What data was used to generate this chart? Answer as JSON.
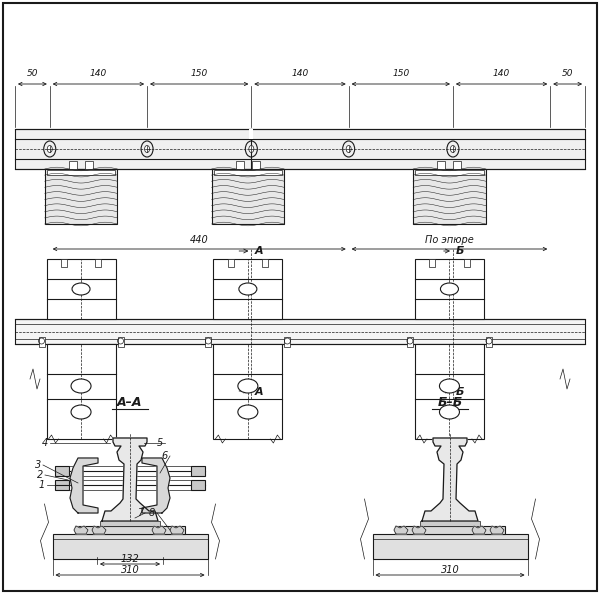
{
  "bg_color": "#ffffff",
  "line_color": "#1a1a1a",
  "dim_top": [
    "50",
    "140",
    "150",
    "140",
    "150",
    "140",
    "50"
  ],
  "dim_440": "440",
  "dim_po_epure": "По эпюре",
  "dim_132": "132",
  "dim_310": "310",
  "title_AA": "А–А",
  "title_BB": "Б–Б",
  "label_A": "А",
  "label_B": "Б",
  "nums": [
    "1",
    "2",
    "3",
    "4",
    "5",
    "6",
    "7",
    "8"
  ]
}
